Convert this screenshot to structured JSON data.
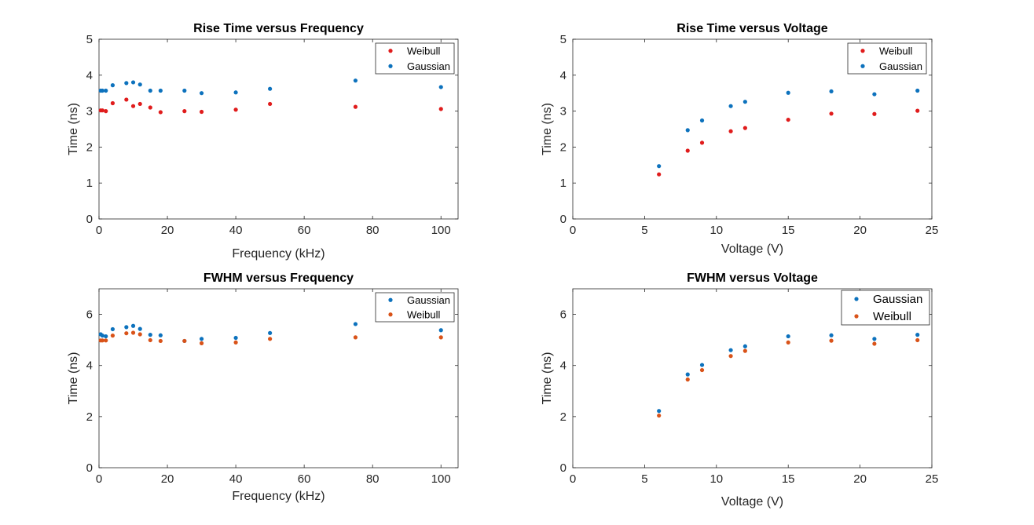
{
  "chart_data": [
    {
      "type": "scatter",
      "title": "Rise Time versus Frequency",
      "xlabel": "Frequency (kHz)",
      "ylabel": "Time (ns)",
      "xlim": [
        0,
        105
      ],
      "ylim": [
        0,
        5
      ],
      "xticks": [
        "0",
        "20",
        "40",
        "60",
        "80",
        "100"
      ],
      "yticks": [
        "0",
        "1",
        "2",
        "3",
        "4",
        "5"
      ],
      "legend_position": "top-right",
      "series": [
        {
          "name": "Weibull",
          "color": "#e01c1c",
          "x": [
            0.5,
            1,
            2,
            4,
            8,
            10,
            12,
            15,
            18,
            25,
            30,
            40,
            50,
            75,
            100
          ],
          "y": [
            3.02,
            3.02,
            3.0,
            3.22,
            3.32,
            3.14,
            3.2,
            3.1,
            2.97,
            3.0,
            2.98,
            3.04,
            3.2,
            3.12,
            3.06
          ]
        },
        {
          "name": "Gaussian",
          "color": "#0d72bd",
          "x": [
            0.5,
            1,
            2,
            4,
            8,
            10,
            12,
            15,
            18,
            25,
            30,
            40,
            50,
            75,
            100
          ],
          "y": [
            3.57,
            3.57,
            3.57,
            3.72,
            3.78,
            3.8,
            3.74,
            3.57,
            3.57,
            3.57,
            3.5,
            3.52,
            3.62,
            3.85,
            3.67
          ]
        }
      ]
    },
    {
      "type": "scatter",
      "title": "Rise Time versus Voltage",
      "xlabel": "Voltage (V)",
      "ylabel": "Time (ns)",
      "xlim": [
        0,
        25
      ],
      "ylim": [
        0,
        5
      ],
      "xticks": [
        "0",
        "5",
        "10",
        "15",
        "20",
        "25"
      ],
      "yticks": [
        "0",
        "1",
        "2",
        "3",
        "4",
        "5"
      ],
      "legend_position": "top-right",
      "series": [
        {
          "name": "Weibull",
          "color": "#e01c1c",
          "x": [
            6,
            8,
            9,
            11,
            12,
            15,
            18,
            21,
            24
          ],
          "y": [
            1.24,
            1.9,
            2.12,
            2.44,
            2.53,
            2.76,
            2.93,
            2.92,
            3.01
          ]
        },
        {
          "name": "Gaussian",
          "color": "#0d72bd",
          "x": [
            6,
            8,
            9,
            11,
            12,
            15,
            18,
            21,
            24
          ],
          "y": [
            1.47,
            2.47,
            2.74,
            3.14,
            3.26,
            3.51,
            3.55,
            3.47,
            3.57
          ]
        }
      ]
    },
    {
      "type": "scatter",
      "title": "FWHM versus Frequency",
      "xlabel": "Frequency (kHz)",
      "ylabel": "Time (ns)",
      "xlim": [
        0,
        105
      ],
      "ylim": [
        0,
        7
      ],
      "xticks": [
        "0",
        "20",
        "40",
        "60",
        "80",
        "100"
      ],
      "yticks": [
        "0",
        "2",
        "4",
        "6"
      ],
      "legend_position": "top-right",
      "series": [
        {
          "name": "Gaussian",
          "color": "#0d72bd",
          "x": [
            0.5,
            1,
            2,
            4,
            8,
            10,
            12,
            15,
            18,
            25,
            30,
            40,
            50,
            75,
            100
          ],
          "y": [
            5.22,
            5.17,
            5.14,
            5.42,
            5.5,
            5.55,
            5.43,
            5.2,
            5.18,
            4.96,
            5.04,
            5.08,
            5.27,
            5.62,
            5.38
          ]
        },
        {
          "name": "Weibull",
          "color": "#d95319",
          "x": [
            0.5,
            1,
            2,
            4,
            8,
            10,
            12,
            15,
            18,
            25,
            30,
            40,
            50,
            75,
            100
          ],
          "y": [
            4.98,
            4.98,
            4.98,
            5.17,
            5.26,
            5.28,
            5.22,
            4.99,
            4.96,
            4.96,
            4.87,
            4.9,
            5.04,
            5.1,
            5.1
          ]
        }
      ]
    },
    {
      "type": "scatter",
      "title": "FWHM versus Voltage",
      "xlabel": "Voltage (V)",
      "ylabel": "Time (ns)",
      "xlim": [
        0,
        25
      ],
      "ylim": [
        0,
        7
      ],
      "xticks": [
        "0",
        "5",
        "10",
        "15",
        "20",
        "25"
      ],
      "yticks": [
        "0",
        "2",
        "4",
        "6"
      ],
      "legend_position": "top-right",
      "series": [
        {
          "name": "Gaussian",
          "color": "#0d72bd",
          "x": [
            6,
            8,
            9,
            11,
            12,
            15,
            18,
            21,
            24
          ],
          "y": [
            2.22,
            3.65,
            4.02,
            4.6,
            4.75,
            5.14,
            5.18,
            5.04,
            5.2
          ]
        },
        {
          "name": "Weibull",
          "color": "#d95319",
          "x": [
            6,
            8,
            9,
            11,
            12,
            15,
            18,
            21,
            24
          ],
          "y": [
            2.04,
            3.45,
            3.82,
            4.37,
            4.57,
            4.9,
            4.97,
            4.85,
            4.99
          ]
        }
      ]
    }
  ]
}
